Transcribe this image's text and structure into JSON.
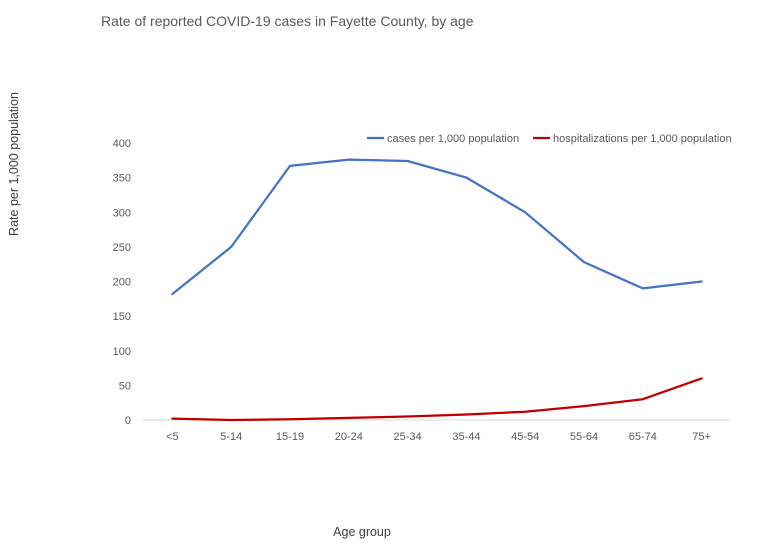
{
  "chart_data": {
    "type": "line",
    "title": "Rate of reported COVID-19 cases in Fayette County, by age",
    "xlabel": "Age group",
    "ylabel": "Rate per 1,000 population",
    "categories": [
      "<5",
      "5-14",
      "15-19",
      "20-24",
      "25-34",
      "35-44",
      "45-54",
      "55-64",
      "65-74",
      "75+"
    ],
    "ylim": [
      0,
      400
    ],
    "yticks": [
      0,
      50,
      100,
      150,
      200,
      250,
      300,
      350,
      400
    ],
    "grid": false,
    "legend_position": "top-right",
    "series": [
      {
        "name": "cases per 1,000 population",
        "color": "#4472C4",
        "values": [
          182,
          250,
          367,
          376,
          374,
          350,
          300,
          228,
          190,
          200
        ]
      },
      {
        "name": "hospitalizations per 1,000 population",
        "color": "#C00000",
        "values": [
          2,
          0,
          1,
          3,
          5,
          8,
          12,
          20,
          30,
          60
        ]
      }
    ]
  }
}
